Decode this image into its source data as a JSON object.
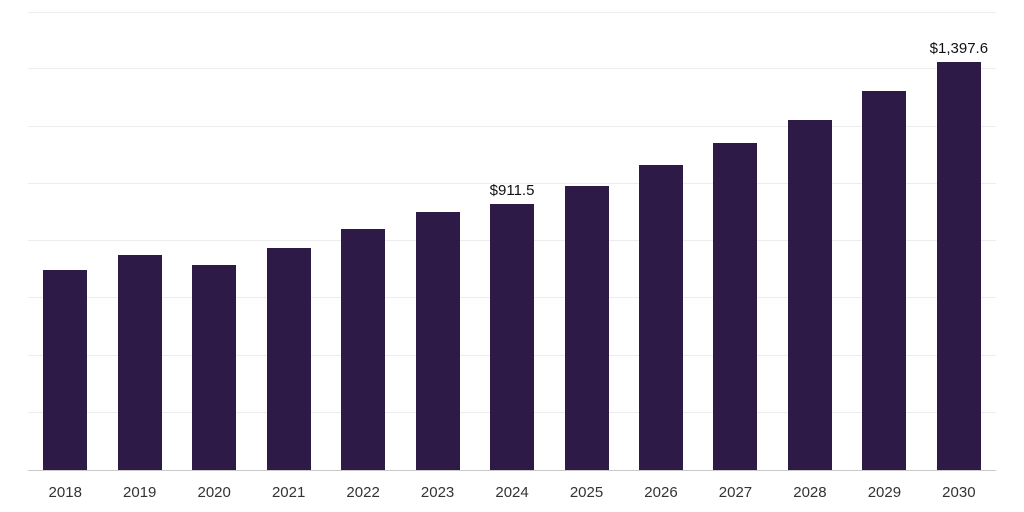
{
  "chart_data": {
    "type": "bar",
    "title": "",
    "xlabel": "",
    "ylabel": "",
    "categories": [
      "2018",
      "2019",
      "2020",
      "2021",
      "2022",
      "2023",
      "2024",
      "2025",
      "2026",
      "2027",
      "2028",
      "2029",
      "2030"
    ],
    "values": [
      685,
      737,
      703,
      760,
      826,
      884,
      911.5,
      973,
      1045,
      1120,
      1199,
      1299,
      1397.6
    ],
    "data_labels": [
      "",
      "",
      "",
      "",
      "",
      "",
      "$911.5",
      "",
      "",
      "",
      "",
      "",
      "$1,397.6"
    ],
    "ylim": [
      0,
      1570
    ],
    "grid": "horizontal gridlines, 8 equal divisions, no y-axis tick labels",
    "legend": "none",
    "labeled_points": [
      {
        "category": "2024",
        "label": "$911.5"
      },
      {
        "category": "2030",
        "label": "$1,397.6"
      }
    ]
  },
  "colors": {
    "bar": "#2E1A47",
    "background": "#FFFFFF",
    "gridline": "#ECECEC",
    "axis_line": "#C9C9C9",
    "data_label": "#111111",
    "tick_label": "#333333"
  }
}
